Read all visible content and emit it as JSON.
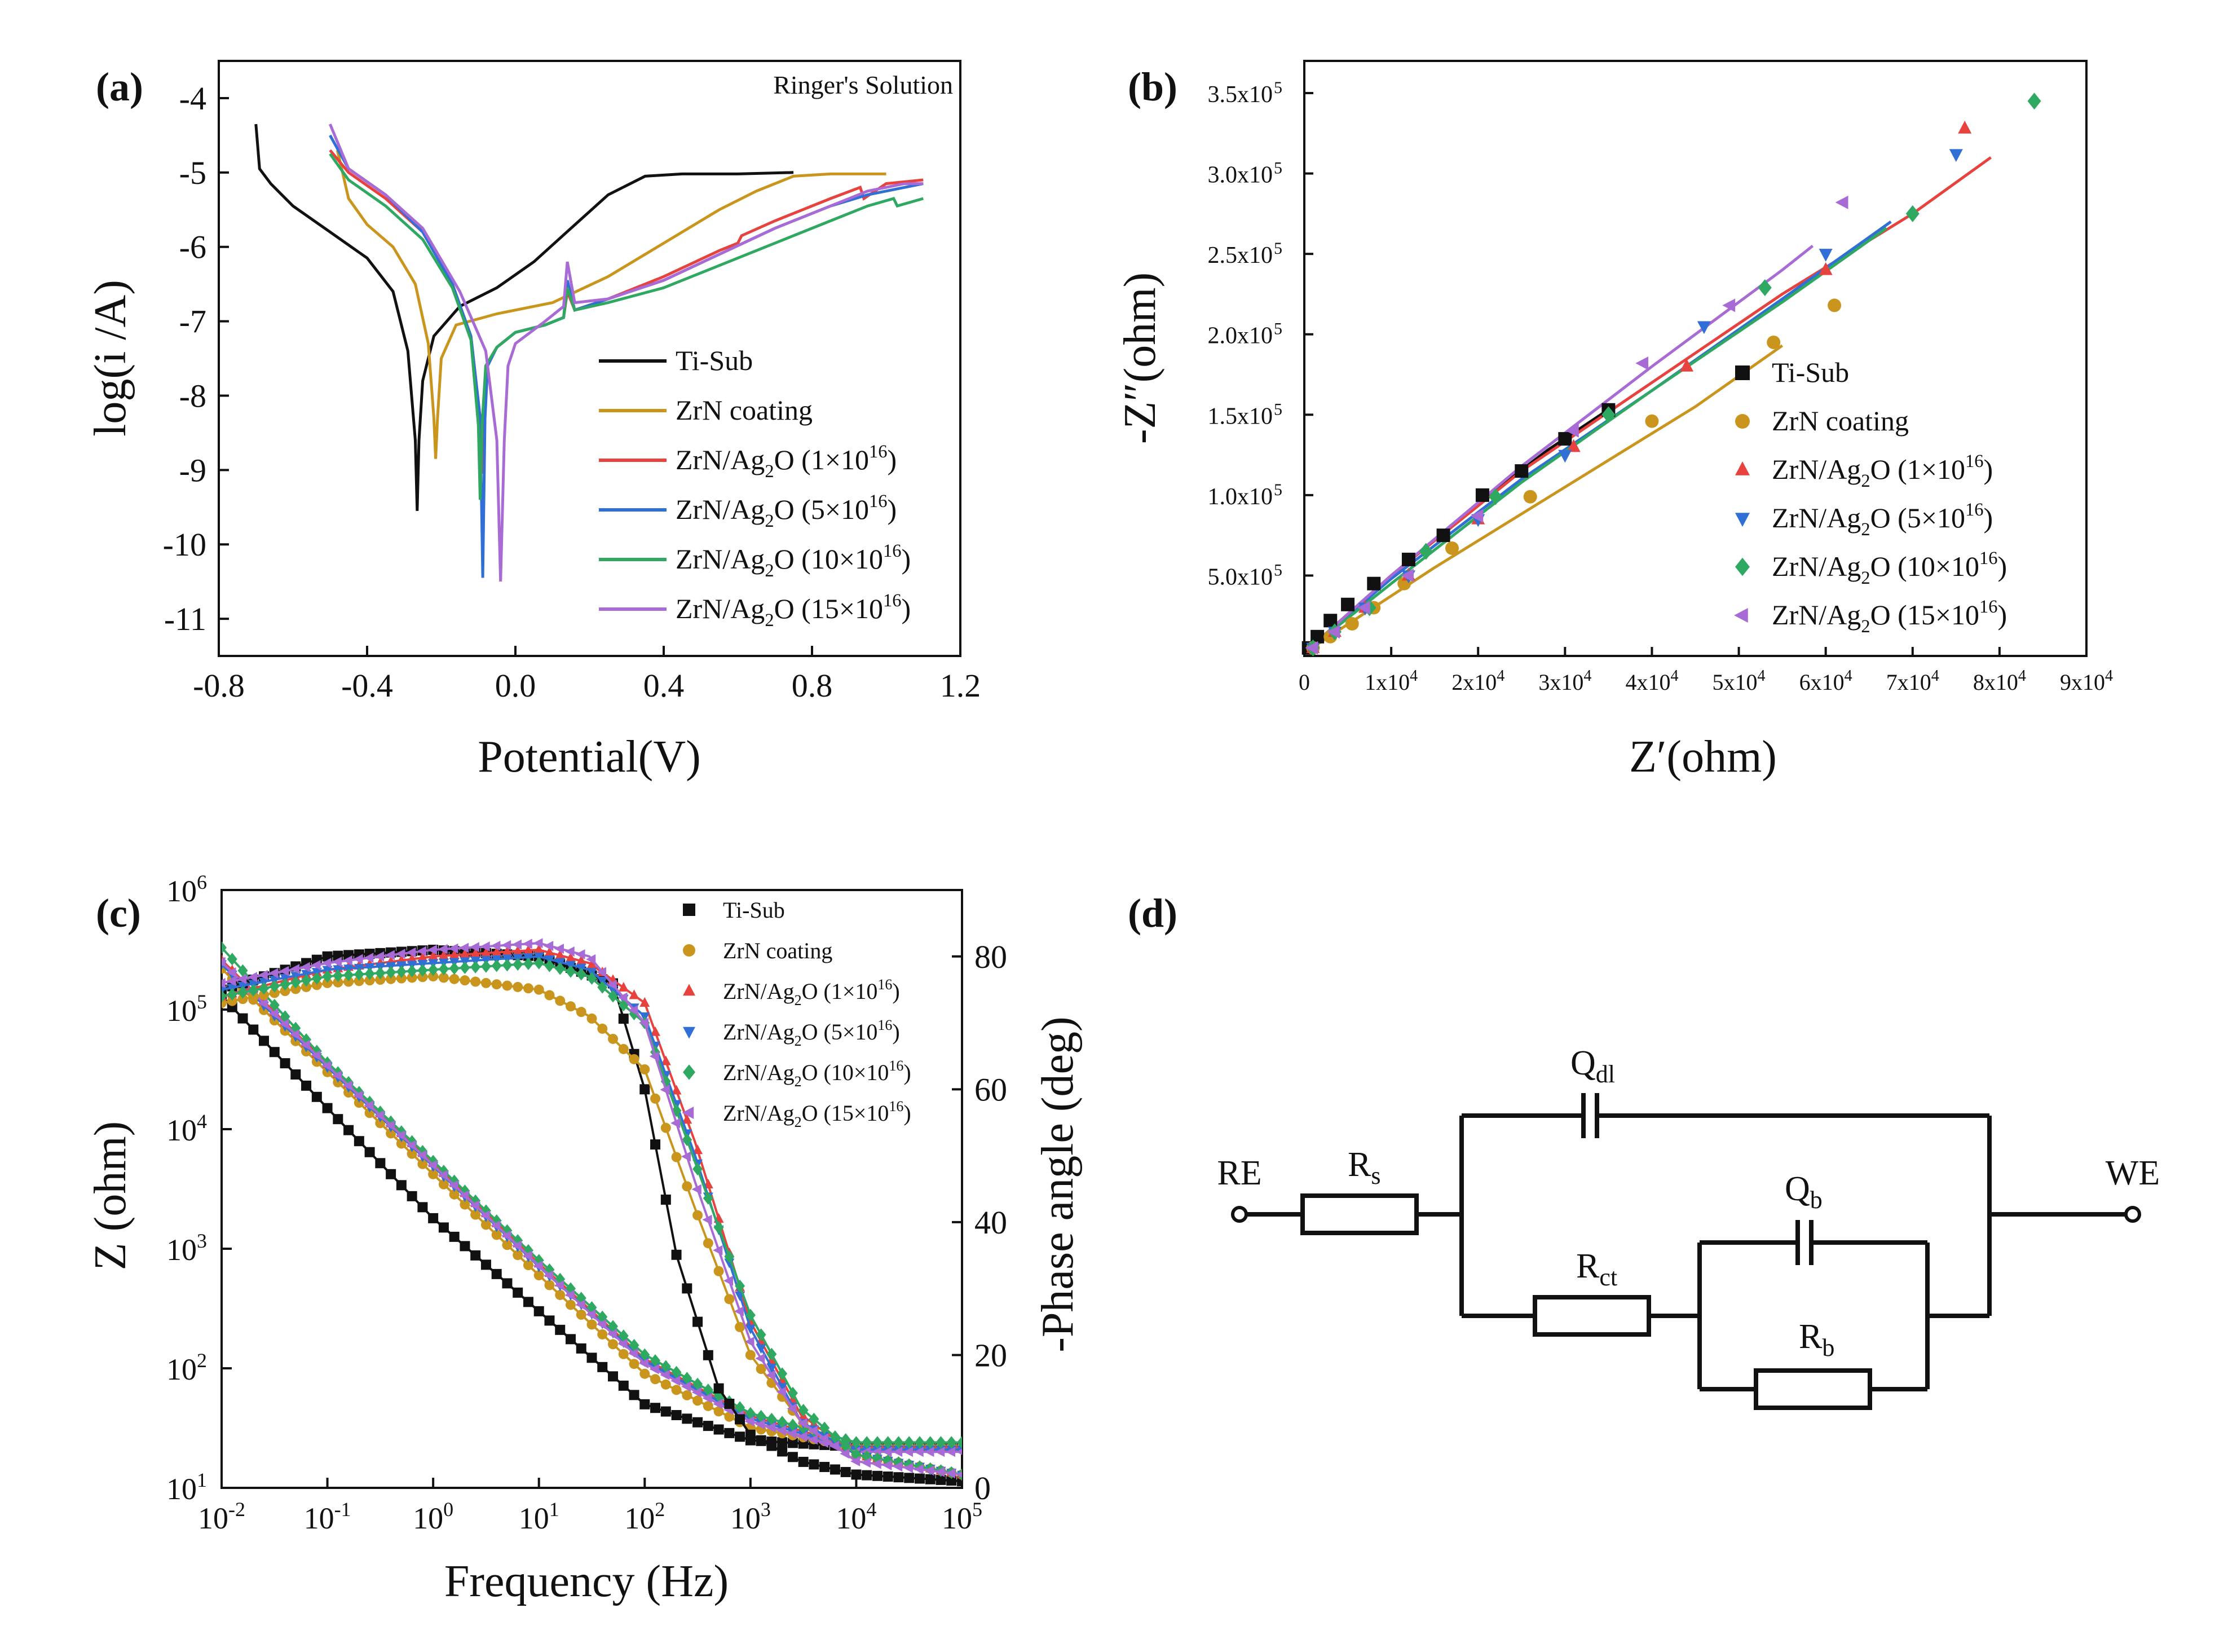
{
  "palette": {
    "Ti-Sub": "#111111",
    "ZrN coating": "#c9951d",
    "ZrN/Ag2O (1×10^16)": "#e8423f",
    "ZrN/Ag2O (5×10^16)": "#2f6fd6",
    "ZrN/Ag2O (10×10^16)": "#2fa862",
    "ZrN/Ag2O (15×10^16)": "#a86bd6"
  },
  "series_names": [
    "Ti-Sub",
    "ZrN coating",
    "ZrN/Ag2O (1×10^16)",
    "ZrN/Ag2O (5×10^16)",
    "ZrN/Ag2O (10×10^16)",
    "ZrN/Ag2O (15×10^16)"
  ],
  "legend": {
    "ti": "Ti-Sub",
    "zrn": "ZrN coating",
    "base": "ZrN/Ag",
    "sub2": "2",
    "oxy": "O (",
    "mul": "×10",
    "close": ")",
    "exp1": "16",
    "exp5": "16",
    "exp10": "16",
    "exp15": "16",
    "c1": "1",
    "c5": "5",
    "c10": "10",
    "c15": "15"
  },
  "chart_data": [
    {
      "panel": "(a)",
      "type": "line",
      "annotation": "Ringer's Solution",
      "xlabel": "Potential(V)",
      "ylabel": "log(i /A)",
      "xlim": [
        -0.8,
        1.2
      ],
      "ylim": [
        -11.5,
        -3.5
      ],
      "xticks": [
        "-0.8",
        "-0.4",
        "0.0",
        "0.4",
        "0.8",
        "1.2"
      ],
      "yticks": [
        "-4",
        "-5",
        "-6",
        "-7",
        "-8",
        "-9",
        "-10",
        "-11"
      ],
      "legend_position": "lower-right",
      "series": [
        {
          "name": "Ti-Sub",
          "x": [
            -0.7,
            -0.69,
            -0.66,
            -0.6,
            -0.5,
            -0.4,
            -0.33,
            -0.29,
            -0.27,
            -0.265,
            -0.26,
            -0.25,
            -0.22,
            -0.15,
            -0.05,
            0.05,
            0.15,
            0.25,
            0.35,
            0.45,
            0.6,
            0.75
          ],
          "y": [
            -4.35,
            -4.95,
            -5.15,
            -5.45,
            -5.8,
            -6.15,
            -6.6,
            -7.4,
            -8.6,
            -9.55,
            -8.6,
            -7.8,
            -7.2,
            -6.8,
            -6.55,
            -6.2,
            -5.75,
            -5.3,
            -5.05,
            -5.02,
            -5.02,
            -5.0
          ]
        },
        {
          "name": "ZrN coating",
          "x": [
            -0.48,
            -0.45,
            -0.4,
            -0.33,
            -0.27,
            -0.235,
            -0.22,
            -0.215,
            -0.21,
            -0.2,
            -0.16,
            -0.05,
            0.1,
            0.25,
            0.4,
            0.55,
            0.65,
            0.75,
            0.85,
            1.0
          ],
          "y": [
            -4.7,
            -5.35,
            -5.7,
            -6.0,
            -6.5,
            -7.3,
            -8.3,
            -8.85,
            -8.3,
            -7.5,
            -7.05,
            -6.9,
            -6.75,
            -6.4,
            -5.95,
            -5.5,
            -5.25,
            -5.05,
            -5.02,
            -5.02
          ]
        },
        {
          "name": "ZrN/Ag2O (1×10^16)",
          "x": [
            -0.5,
            -0.45,
            -0.35,
            -0.25,
            -0.17,
            -0.12,
            -0.095,
            -0.09,
            -0.085,
            -0.08,
            -0.05,
            0.0,
            0.08,
            0.13,
            0.14,
            0.16,
            0.25,
            0.4,
            0.55,
            0.6,
            0.61,
            0.7,
            0.85,
            0.93,
            0.94,
            1.0,
            1.1
          ],
          "y": [
            -4.7,
            -5.0,
            -5.35,
            -5.8,
            -6.5,
            -7.2,
            -8.3,
            -9.05,
            -8.2,
            -7.6,
            -7.35,
            -7.15,
            -7.05,
            -6.95,
            -6.6,
            -6.85,
            -6.7,
            -6.4,
            -6.05,
            -5.95,
            -5.85,
            -5.65,
            -5.35,
            -5.2,
            -5.35,
            -5.15,
            -5.1
          ]
        },
        {
          "name": "ZrN/Ag2O (5×10^16)",
          "x": [
            -0.5,
            -0.45,
            -0.35,
            -0.25,
            -0.17,
            -0.12,
            -0.095,
            -0.088,
            -0.082,
            -0.075,
            -0.05,
            0.0,
            0.08,
            0.13,
            0.14,
            0.16,
            0.25,
            0.4,
            0.55,
            0.7,
            0.85,
            0.95,
            1.05,
            1.1
          ],
          "y": [
            -4.5,
            -4.95,
            -5.3,
            -5.8,
            -6.5,
            -7.2,
            -8.3,
            -10.45,
            -8.3,
            -7.6,
            -7.35,
            -7.15,
            -7.05,
            -6.95,
            -6.45,
            -6.85,
            -6.7,
            -6.45,
            -6.1,
            -5.75,
            -5.45,
            -5.3,
            -5.2,
            -5.15
          ]
        },
        {
          "name": "ZrN/Ag2O (10×10^16)",
          "x": [
            -0.5,
            -0.45,
            -0.35,
            -0.25,
            -0.17,
            -0.12,
            -0.1,
            -0.095,
            -0.09,
            -0.08,
            -0.05,
            0.0,
            0.08,
            0.13,
            0.14,
            0.16,
            0.25,
            0.4,
            0.55,
            0.7,
            0.85,
            0.95,
            1.02,
            1.03,
            1.1
          ],
          "y": [
            -4.75,
            -5.1,
            -5.45,
            -5.9,
            -6.55,
            -7.25,
            -8.4,
            -9.4,
            -8.4,
            -7.6,
            -7.35,
            -7.15,
            -7.05,
            -6.95,
            -6.55,
            -6.85,
            -6.75,
            -6.55,
            -6.25,
            -5.95,
            -5.65,
            -5.45,
            -5.35,
            -5.45,
            -5.35
          ]
        },
        {
          "name": "ZrN/Ag2O (15×10^16)",
          "x": [
            -0.5,
            -0.45,
            -0.35,
            -0.25,
            -0.15,
            -0.08,
            -0.05,
            -0.04,
            -0.03,
            -0.02,
            0.0,
            0.08,
            0.13,
            0.14,
            0.16,
            0.25,
            0.4,
            0.55,
            0.7,
            0.85,
            0.95,
            1.05,
            1.1
          ],
          "y": [
            -4.35,
            -4.95,
            -5.3,
            -5.75,
            -6.6,
            -7.4,
            -8.6,
            -10.5,
            -8.6,
            -7.6,
            -7.3,
            -7.0,
            -6.8,
            -6.2,
            -6.75,
            -6.7,
            -6.45,
            -6.1,
            -5.75,
            -5.45,
            -5.25,
            -5.15,
            -5.15
          ]
        }
      ]
    },
    {
      "panel": "(b)",
      "type": "scatter",
      "xlabel": "Z′(ohm)",
      "ylabel": "-Z″(ohm)",
      "xlim": [
        0,
        90000
      ],
      "ylim": [
        0,
        370000
      ],
      "xticks": [
        "0",
        "1x10",
        "2x10",
        "3x10",
        "4x10",
        "5x10",
        "6x10",
        "7x10",
        "8x10",
        "9x10"
      ],
      "xtick_exp": "4",
      "yticks": [
        "5.0x10",
        "1.0x10",
        "1.5x10",
        "2.0x10",
        "2.5x10",
        "3.0x10",
        "3.5x10"
      ],
      "ytick_exp": "5",
      "legend_position": "lower-right",
      "series": [
        {
          "name": "Ti-Sub",
          "marker": "square",
          "x": [
            500,
            1500,
            3000,
            5000,
            8000,
            12000,
            16000,
            20500,
            25000,
            30000,
            35000
          ],
          "y": [
            5000,
            12000,
            22000,
            32000,
            45000,
            60000,
            75000,
            100000,
            115000,
            135000,
            153000
          ],
          "fit_x": [
            0,
            10000,
            20000,
            28000,
            35500
          ],
          "fit_y": [
            2000,
            50000,
            95000,
            128000,
            155000
          ]
        },
        {
          "name": "ZrN coating",
          "marker": "circle",
          "x": [
            1000,
            3000,
            5500,
            8000,
            11500,
            17000,
            26000,
            40000,
            54000,
            61000
          ],
          "y": [
            5000,
            12000,
            20000,
            30000,
            45000,
            67000,
            99000,
            146000,
            195000,
            218000
          ],
          "fit_x": [
            0,
            15000,
            30000,
            45000,
            55000
          ],
          "fit_y": [
            2000,
            55000,
            105000,
            155000,
            193000
          ]
        },
        {
          "name": "ZrN/Ag2O (1×10^16)",
          "marker": "triangle-up",
          "x": [
            1000,
            3500,
            7000,
            12000,
            20000,
            31000,
            44000,
            60000,
            76000
          ],
          "y": [
            5000,
            15000,
            30000,
            50000,
            85000,
            130000,
            180000,
            240000,
            328000
          ],
          "fit_x": [
            0,
            10000,
            25000,
            40000,
            55000,
            70000,
            79000
          ],
          "fit_y": [
            2000,
            50000,
            115000,
            170000,
            225000,
            275000,
            310000
          ]
        },
        {
          "name": "ZrN/Ag2O (5×10^16)",
          "marker": "triangle-down",
          "x": [
            1000,
            3500,
            7000,
            12000,
            20000,
            30000,
            46000,
            60000,
            75000
          ],
          "y": [
            5000,
            15000,
            30000,
            50000,
            85000,
            125000,
            205000,
            250000,
            312000
          ],
          "fit_x": [
            0,
            10000,
            25000,
            40000,
            55000,
            67500
          ],
          "fit_y": [
            2000,
            48000,
            110000,
            165000,
            222000,
            270000
          ]
        },
        {
          "name": "ZrN/Ag2O (10×10^16)",
          "marker": "diamond",
          "x": [
            1000,
            3500,
            7500,
            14000,
            22000,
            35000,
            53000,
            70000,
            84000
          ],
          "y": [
            5000,
            15000,
            30000,
            65000,
            99000,
            150000,
            229000,
            275000,
            345000
          ],
          "fit_x": [
            0,
            10000,
            25000,
            40000,
            55000,
            67000
          ],
          "fit_y": [
            2000,
            45000,
            108000,
            165000,
            220000,
            266000
          ]
        },
        {
          "name": "ZrN/Ag2O (15×10^16)",
          "marker": "triangle-left",
          "x": [
            1000,
            3500,
            7000,
            12000,
            20000,
            31000,
            39000,
            49000,
            62000
          ],
          "y": [
            5000,
            15000,
            30000,
            50000,
            87000,
            140000,
            182000,
            218000,
            282000
          ],
          "fit_x": [
            0,
            10000,
            25000,
            40000,
            55000,
            58500
          ],
          "fit_y": [
            2000,
            50000,
            118000,
            180000,
            240000,
            255000
          ]
        }
      ]
    },
    {
      "panel": "(c)",
      "type": "line",
      "xlabel": "Frequency (Hz)",
      "ylabel": "Z (ohm)",
      "ylabel_right": "-Phase angle (deg)",
      "x_scale": "log",
      "y_scale": "log",
      "xlim": [
        0.01,
        100000
      ],
      "ylim": [
        10,
        1000000
      ],
      "ylim_right": [
        0,
        90
      ],
      "xticks_base": "10",
      "xticks_exp": [
        "-2",
        "-1",
        "0",
        "1",
        "2",
        "3",
        "4",
        "5"
      ],
      "yticks_base": "10",
      "yticks_exp": [
        "1",
        "2",
        "3",
        "4",
        "5",
        "6"
      ],
      "yticks_right": [
        "0",
        "20",
        "40",
        "60",
        "80"
      ],
      "legend_position": "upper-right",
      "series": [
        {
          "name": "Ti-Sub |Z|",
          "x": [
            0.01,
            0.1,
            1,
            10,
            100,
            1000,
            10000,
            100000
          ],
          "y": [
            130000,
            15000,
            1800,
            300,
            50,
            25,
            22,
            22
          ]
        },
        {
          "name": "ZrN coating |Z|",
          "x": [
            0.01,
            0.1,
            1,
            10,
            100,
            1000,
            10000,
            100000
          ],
          "y": [
            220000,
            30000,
            4200,
            600,
            90,
            32,
            22,
            22
          ]
        },
        {
          "name": "ZrN/Ag2O (1×10^16) |Z|",
          "x": [
            0.01,
            0.1,
            1,
            10,
            100,
            1000,
            10000,
            100000
          ],
          "y": [
            260000,
            35000,
            5200,
            750,
            120,
            40,
            22,
            22
          ]
        },
        {
          "name": "ZrN/Ag2O (5×10^16) |Z|",
          "x": [
            0.01,
            0.1,
            1,
            10,
            100,
            1000,
            10000,
            100000
          ],
          "y": [
            240000,
            33000,
            4900,
            710,
            115,
            38,
            21,
            21
          ]
        },
        {
          "name": "ZrN/Ag2O (10×10^16) |Z|",
          "x": [
            0.01,
            0.1,
            1,
            10,
            100,
            1000,
            10000,
            100000
          ],
          "y": [
            330000,
            36000,
            5400,
            800,
            130,
            42,
            24,
            24
          ]
        },
        {
          "name": "ZrN/Ag2O (15×10^16) |Z|",
          "x": [
            0.01,
            0.1,
            1,
            10,
            100,
            1000,
            10000,
            100000
          ],
          "y": [
            250000,
            34000,
            5000,
            720,
            110,
            36,
            20,
            20
          ]
        },
        {
          "name": "Ti-Sub phase",
          "axis": "right",
          "x": [
            0.01,
            0.1,
            1,
            10,
            50,
            100,
            200,
            500,
            1000,
            3000,
            10000,
            100000
          ],
          "y": [
            75,
            80,
            81,
            80,
            76,
            60,
            35,
            15,
            8,
            4,
            2,
            1
          ]
        },
        {
          "name": "ZrN coating phase",
          "axis": "right",
          "x": [
            0.01,
            0.1,
            1,
            10,
            30,
            100,
            300,
            1000,
            3000,
            10000,
            100000
          ],
          "y": [
            73,
            76,
            77,
            75,
            71,
            63,
            42,
            20,
            10,
            5,
            2
          ]
        },
        {
          "name": "ZrN/Ag2O (1×10^16) phase",
          "axis": "right",
          "x": [
            0.01,
            0.1,
            1,
            10,
            30,
            100,
            300,
            1000,
            3000,
            10000,
            100000
          ],
          "y": [
            74,
            78,
            80,
            81,
            79,
            73,
            52,
            25,
            11,
            5,
            2
          ]
        },
        {
          "name": "ZrN/Ag2O (5×10^16) phase",
          "axis": "right",
          "x": [
            0.01,
            0.1,
            1,
            10,
            30,
            100,
            300,
            1000,
            3000,
            10000,
            100000
          ],
          "y": [
            75,
            78,
            79,
            80,
            78,
            71,
            50,
            24,
            10,
            5,
            2
          ]
        },
        {
          "name": "ZrN/Ag2O (10×10^16) phase",
          "axis": "right",
          "x": [
            0.01,
            0.1,
            1,
            10,
            30,
            100,
            300,
            1000,
            3000,
            10000,
            100000
          ],
          "y": [
            74,
            77,
            78,
            79,
            77,
            70,
            49,
            26,
            12,
            5,
            2
          ]
        },
        {
          "name": "ZrN/Ag2O (15×10^16) phase",
          "axis": "right",
          "x": [
            0.01,
            0.1,
            1,
            10,
            30,
            100,
            300,
            1000,
            3000,
            10000,
            100000
          ],
          "y": [
            76,
            79,
            81,
            82,
            80,
            70,
            46,
            22,
            10,
            4,
            2
          ]
        }
      ]
    }
  ],
  "circuit": {
    "panel": "(d)",
    "re": "RE",
    "we": "WE",
    "rs": "R",
    "rs_sub": "s",
    "qdl": "Q",
    "qdl_sub": "dl",
    "rct": "R",
    "rct_sub": "ct",
    "qb": "Q",
    "qb_sub": "b",
    "rb": "R",
    "rb_sub": "b"
  }
}
